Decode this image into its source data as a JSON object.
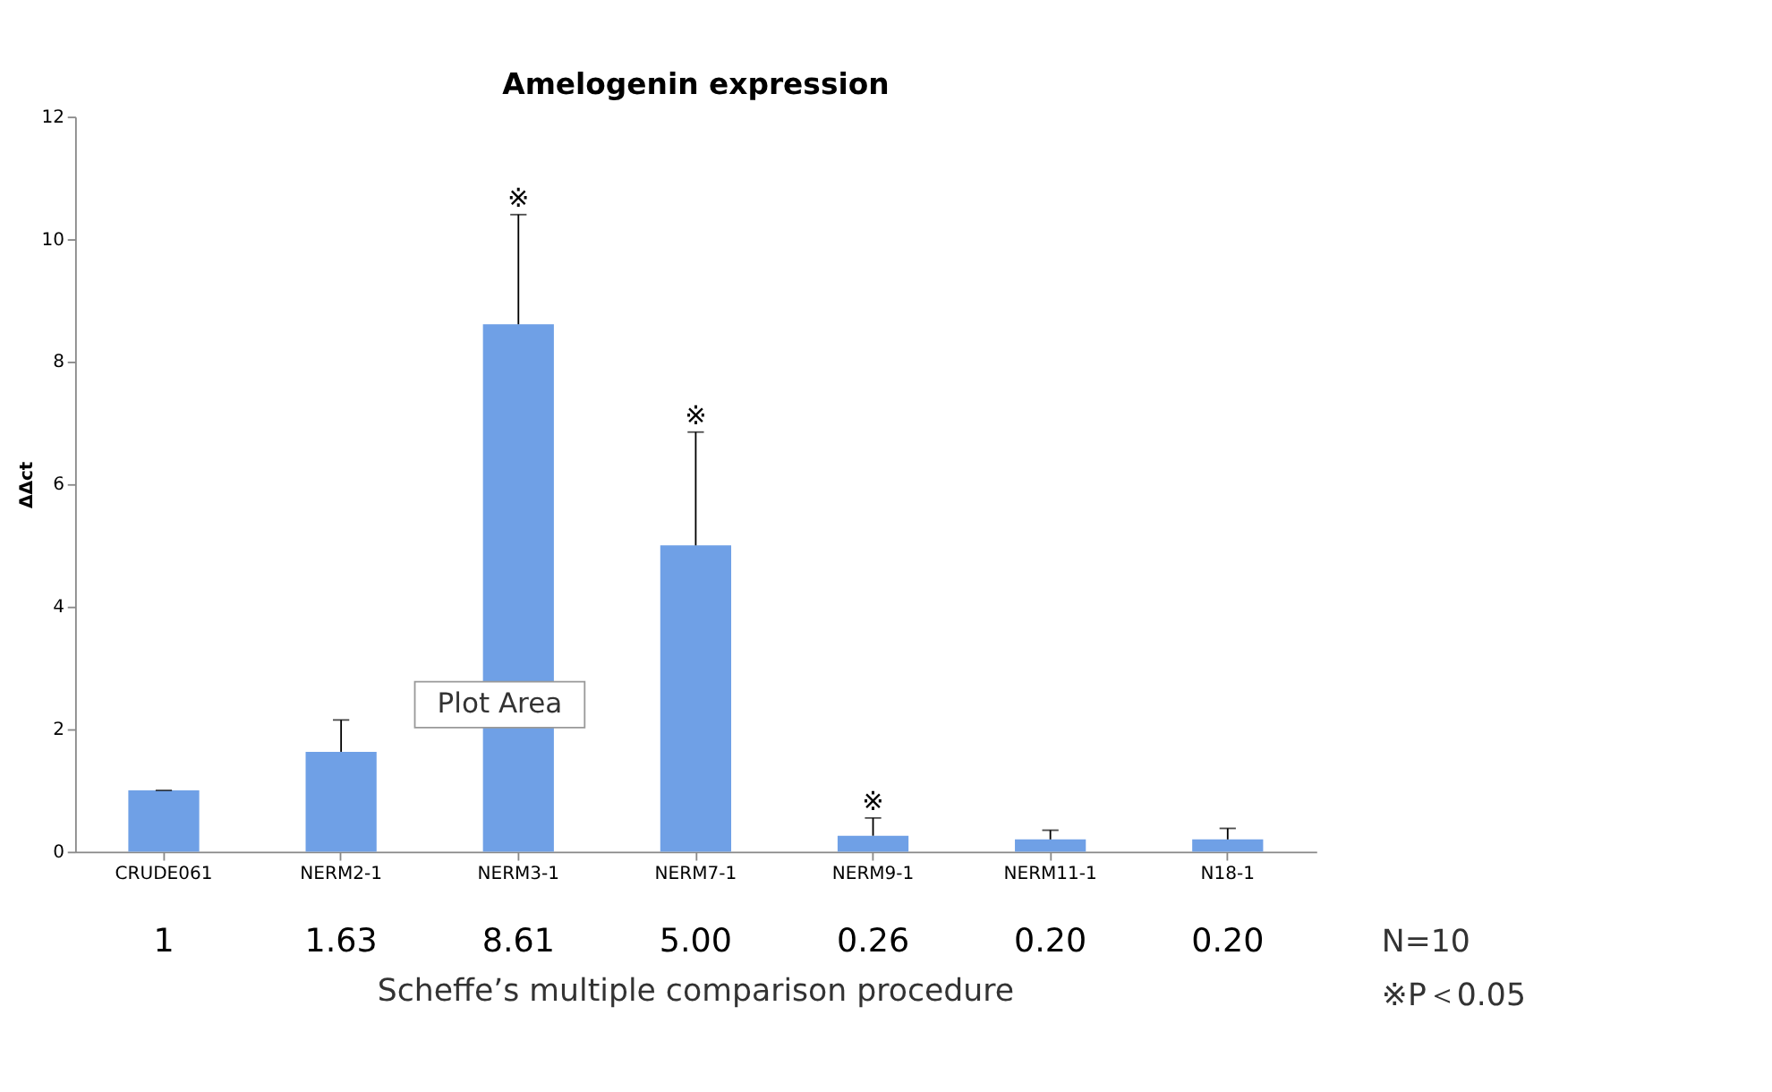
{
  "chart_data": {
    "type": "bar",
    "title": "Amelogenin expression",
    "ylabel": "ΔΔct",
    "categories": [
      "CRUDE061",
      "NERM2-1",
      "NERM3-1",
      "NERM7-1",
      "NERM9-1",
      "NERM11-1",
      "N18-1"
    ],
    "values": [
      1,
      1.63,
      8.61,
      5.0,
      0.26,
      0.2,
      0.2
    ],
    "errors": [
      [
        1,
        1.0
      ],
      [
        1.63,
        2.15
      ],
      [
        8.61,
        10.4
      ],
      [
        5.0,
        6.85
      ],
      [
        0.26,
        0.55
      ],
      [
        0.2,
        0.35
      ],
      [
        0.2,
        0.38
      ]
    ],
    "value_labels": [
      "1",
      "1.63",
      "8.61",
      "5.00",
      "0.26",
      "0.20",
      "0.20"
    ],
    "color": "#6fa0e6",
    "ylim": [
      0,
      12
    ],
    "yticks": [
      0,
      2,
      4,
      6,
      8,
      10,
      12
    ],
    "grid": false,
    "annotations": [
      {
        "text": "※",
        "x": "NERM3-1",
        "y": 10.4
      },
      {
        "text": "※",
        "x": "NERM7-1",
        "y": 6.85
      },
      {
        "text": "※",
        "x": "NERM9-1",
        "y": 0.55
      },
      "Plot Area",
      "N=10",
      "Scheffe’s multiple comparison procedure",
      "※P＜0.05"
    ]
  }
}
